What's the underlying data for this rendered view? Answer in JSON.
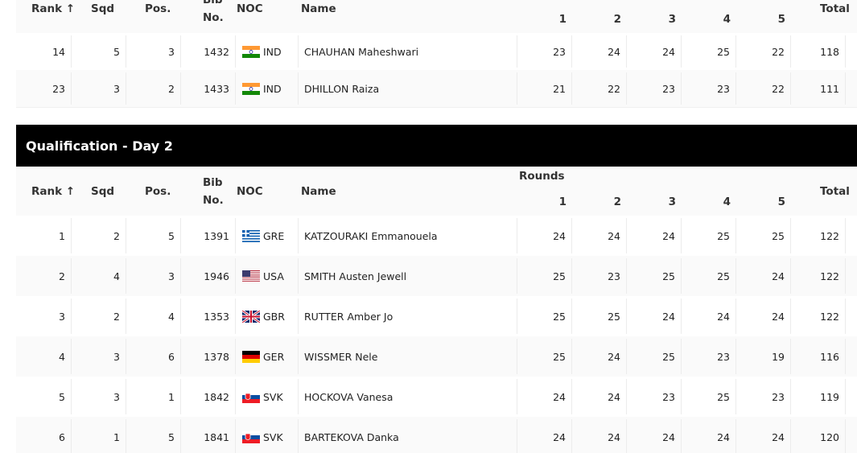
{
  "tables": [
    {
      "header": {
        "rank": "Rank ↑",
        "sqd": "Sqd",
        "pos": "Pos.",
        "bib": "Bib No.",
        "noc": "NOC",
        "name": "Name",
        "rounds": [
          1,
          2,
          3,
          4,
          5
        ],
        "total": "Total"
      },
      "rows": [
        [
          14,
          5,
          3,
          1432,
          "IND",
          "CHAUHAN Maheshwari",
          23,
          24,
          24,
          25,
          22,
          118
        ],
        [
          23,
          3,
          2,
          1433,
          "IND",
          "DHILLON Raiza",
          21,
          22,
          23,
          23,
          22,
          111
        ]
      ]
    },
    {
      "title": "Qualification - Day 2",
      "header": {
        "rank": "Rank ↑",
        "sqd": "Sqd",
        "pos": "Pos.",
        "bib": "Bib No.",
        "noc": "NOC",
        "name": "Name",
        "rounds_label": "Rounds",
        "rounds": [
          1,
          2,
          3,
          4,
          5
        ],
        "total": "Total"
      },
      "rows": [
        [
          1,
          2,
          5,
          1391,
          "GRE",
          "KATZOURAKI Emmanouela",
          24,
          24,
          24,
          25,
          25,
          122
        ],
        [
          2,
          4,
          3,
          1946,
          "USA",
          "SMITH Austen Jewell",
          25,
          23,
          25,
          25,
          24,
          122
        ],
        [
          3,
          2,
          4,
          1353,
          "GBR",
          "RUTTER Amber Jo",
          25,
          25,
          24,
          24,
          24,
          122
        ],
        [
          4,
          3,
          6,
          1378,
          "GER",
          "WISSMER Nele",
          25,
          24,
          25,
          23,
          19,
          116
        ],
        [
          5,
          3,
          1,
          1842,
          "SVK",
          "HOCKOVA Vanesa",
          24,
          24,
          23,
          25,
          23,
          119
        ],
        [
          6,
          1,
          5,
          1841,
          "SVK",
          "BARTEKOVA Danka",
          24,
          24,
          24,
          24,
          24,
          120
        ]
      ]
    }
  ]
}
